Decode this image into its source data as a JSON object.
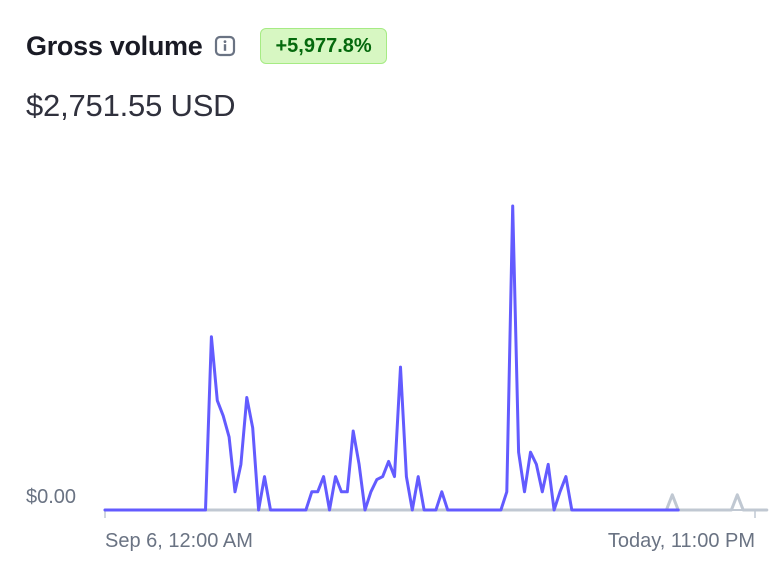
{
  "header": {
    "title": "Gross volume",
    "change_badge": "+5,977.8%"
  },
  "summary": {
    "amount": "$2,751.55 USD"
  },
  "colors": {
    "current_series": "#635bff",
    "comparison_series": "#c0c8d2",
    "badge_bg": "#d7f7c2",
    "badge_text": "#05690d"
  },
  "chart_data": {
    "type": "line",
    "xlabel": "",
    "ylabel": "",
    "x_tick_labels": [
      "Sep 6, 12:00 AM",
      "Today, 11:00 PM"
    ],
    "y_tick_labels": [
      "$0.00"
    ],
    "ylim": [
      0,
      100
    ],
    "grid": false,
    "series": [
      {
        "role": "current",
        "values": [
          0,
          0,
          0,
          0,
          0,
          0,
          0,
          0,
          0,
          0,
          0,
          0,
          0,
          0,
          0,
          0,
          0,
          0,
          57,
          36,
          31,
          24,
          6,
          15,
          37,
          27,
          0,
          11,
          0,
          0,
          0,
          0,
          0,
          0,
          0,
          6,
          6,
          11,
          0,
          11,
          6,
          6,
          26,
          15,
          0,
          6,
          10,
          11,
          16,
          11,
          47,
          11,
          0,
          11,
          0,
          0,
          0,
          6,
          0,
          0,
          0,
          0,
          0,
          0,
          0,
          0,
          0,
          0,
          6,
          100,
          19,
          6,
          19,
          15,
          6,
          15,
          0,
          6,
          11,
          0,
          0,
          0,
          0,
          0,
          0,
          0,
          0,
          0,
          0,
          0,
          0,
          0,
          0,
          0,
          0,
          0,
          0,
          0,
          0,
          0,
          0,
          0,
          0,
          0,
          0,
          0,
          0,
          0,
          0,
          0,
          0
        ]
      },
      {
        "role": "comparison",
        "values": [
          0,
          0,
          0,
          0,
          0,
          0,
          0,
          0,
          0,
          0,
          0,
          0,
          0,
          0,
          0,
          0,
          0,
          0,
          0,
          0,
          0,
          0,
          0,
          0,
          0,
          0,
          0,
          0,
          0,
          0,
          0,
          0,
          0,
          0,
          0,
          0,
          0,
          0,
          0,
          0,
          0,
          0,
          0,
          0,
          0,
          0,
          0,
          0,
          0,
          0,
          0,
          0,
          0,
          0,
          0,
          0,
          0,
          0,
          0,
          0,
          0,
          0,
          0,
          0,
          0,
          0,
          0,
          0,
          0,
          0,
          0,
          0,
          0,
          0,
          0,
          0,
          0,
          0,
          0,
          0,
          0,
          0,
          0,
          0,
          0,
          0,
          0,
          0,
          0,
          0,
          0,
          0,
          0,
          0,
          0,
          0,
          5,
          0,
          0,
          0,
          0,
          0,
          0,
          0,
          0,
          0,
          0,
          5,
          0,
          0,
          0,
          0,
          0
        ]
      }
    ],
    "current_points_drawn": 98
  }
}
